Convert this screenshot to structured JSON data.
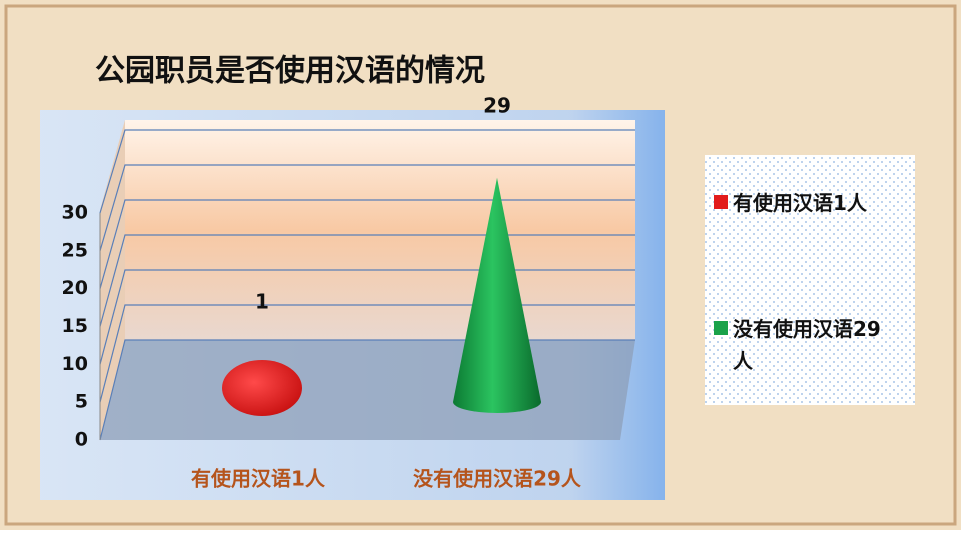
{
  "chart_data": {
    "type": "cone3d",
    "title": "公园职员是否使用汉语的情况",
    "categories": [
      "有使用汉语1人",
      "没有使用汉语29人"
    ],
    "values": [
      1,
      29
    ],
    "colors": [
      "#e21b1b",
      "#1aa24a"
    ],
    "ylim": [
      0,
      30
    ],
    "yticks": [
      0,
      5,
      10,
      15,
      20,
      25,
      30
    ],
    "grid": true
  }
}
